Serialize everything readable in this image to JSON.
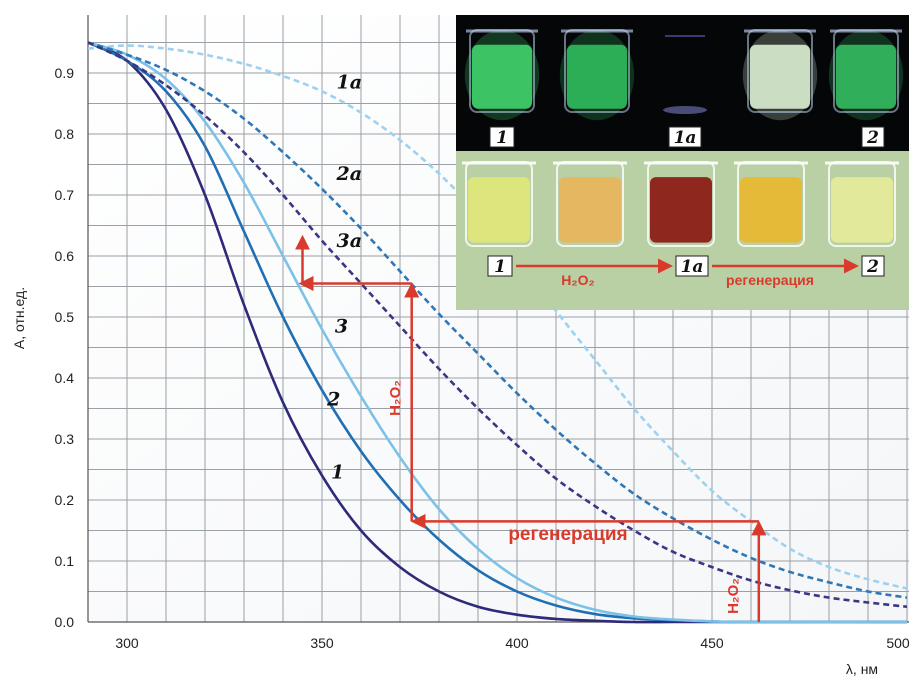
{
  "chart_data": {
    "type": "line",
    "xlabel": "λ, нм",
    "ylabel": "A, отн.ед.",
    "xlim": [
      290,
      500
    ],
    "ylim": [
      0,
      0.95
    ],
    "x_ticks": [
      "300",
      "350",
      "400",
      "450",
      "500"
    ],
    "y_ticks": [
      "0.0",
      "0.1",
      "0.2",
      "0.3",
      "0.4",
      "0.5",
      "0.6",
      "0.7",
      "0.8",
      "0.9"
    ],
    "grid": true,
    "series": [
      {
        "name": "1",
        "style": "solid",
        "color": "#2e2a7a",
        "x": [
          290,
          300,
          310,
          320,
          330,
          340,
          350,
          360,
          370,
          380,
          390,
          400,
          410,
          420,
          430,
          440,
          450,
          500
        ],
        "y": [
          0.95,
          0.92,
          0.84,
          0.7,
          0.52,
          0.36,
          0.24,
          0.15,
          0.09,
          0.05,
          0.025,
          0.012,
          0.005,
          0.002,
          0.0,
          0.0,
          0.0,
          0.0
        ]
      },
      {
        "name": "2",
        "style": "solid",
        "color": "#1f6fb2",
        "x": [
          290,
          300,
          310,
          320,
          330,
          340,
          350,
          360,
          370,
          380,
          390,
          400,
          410,
          420,
          430,
          440,
          450,
          460,
          500
        ],
        "y": [
          0.95,
          0.92,
          0.87,
          0.78,
          0.64,
          0.5,
          0.38,
          0.28,
          0.2,
          0.135,
          0.085,
          0.05,
          0.027,
          0.013,
          0.006,
          0.003,
          0.001,
          0.0,
          0.0
        ]
      },
      {
        "name": "3",
        "style": "solid",
        "color": "#7cc1e8",
        "x": [
          290,
          300,
          310,
          320,
          330,
          340,
          350,
          360,
          370,
          380,
          390,
          400,
          410,
          420,
          430,
          440,
          450,
          460,
          500
        ],
        "y": [
          0.95,
          0.93,
          0.89,
          0.82,
          0.72,
          0.6,
          0.48,
          0.37,
          0.27,
          0.185,
          0.12,
          0.072,
          0.04,
          0.02,
          0.009,
          0.004,
          0.001,
          0.0,
          0.0
        ]
      },
      {
        "name": "1a",
        "style": "dashed",
        "color": "#9ed0f0",
        "x": [
          290,
          300,
          310,
          320,
          330,
          340,
          350,
          360,
          370,
          380,
          390,
          400,
          410,
          420,
          430,
          440,
          450,
          460,
          470,
          480,
          490,
          500
        ],
        "y": [
          0.94,
          0.945,
          0.94,
          0.93,
          0.915,
          0.895,
          0.87,
          0.835,
          0.79,
          0.735,
          0.67,
          0.595,
          0.51,
          0.43,
          0.35,
          0.28,
          0.215,
          0.165,
          0.12,
          0.09,
          0.07,
          0.055
        ]
      },
      {
        "name": "2a",
        "style": "dashed",
        "color": "#2f77b6",
        "x": [
          290,
          300,
          310,
          320,
          330,
          340,
          350,
          360,
          370,
          380,
          390,
          400,
          410,
          420,
          430,
          440,
          450,
          460,
          470,
          480,
          490,
          500
        ],
        "y": [
          0.95,
          0.93,
          0.905,
          0.87,
          0.825,
          0.77,
          0.71,
          0.645,
          0.575,
          0.505,
          0.44,
          0.375,
          0.315,
          0.26,
          0.21,
          0.17,
          0.135,
          0.105,
          0.082,
          0.065,
          0.05,
          0.04
        ]
      },
      {
        "name": "3a",
        "style": "dashed",
        "color": "#3a3585",
        "x": [
          290,
          300,
          310,
          320,
          330,
          340,
          350,
          360,
          370,
          380,
          390,
          400,
          410,
          420,
          430,
          440,
          450,
          460,
          470,
          480,
          490,
          500
        ],
        "y": [
          0.95,
          0.92,
          0.88,
          0.83,
          0.77,
          0.7,
          0.625,
          0.555,
          0.485,
          0.415,
          0.35,
          0.29,
          0.235,
          0.19,
          0.15,
          0.115,
          0.09,
          0.068,
          0.052,
          0.04,
          0.032,
          0.025
        ]
      }
    ],
    "curve_labels": [
      {
        "text": "1a",
        "x": 357,
        "y": 0.875
      },
      {
        "text": "2a",
        "x": 357,
        "y": 0.725
      },
      {
        "text": "3a",
        "x": 357,
        "y": 0.615
      },
      {
        "text": "3",
        "x": 355,
        "y": 0.475
      },
      {
        "text": "2",
        "x": 353,
        "y": 0.355
      },
      {
        "text": "1",
        "x": 354,
        "y": 0.235
      }
    ],
    "annotations": {
      "h2o2_label": "H₂O₂",
      "regeneration_label": "регенерация",
      "arrow_color": "#d93a2b",
      "h2o2_arrow_low": {
        "x": 462,
        "y_from": 0.0,
        "y_to": 0.165
      },
      "regeneration_arrow": {
        "x_from": 462,
        "x_to": 373,
        "y": 0.165
      },
      "h2o2_arrow_high": {
        "x": 373,
        "y_from": 0.165,
        "y_to": 0.555
      },
      "shift_arrow": {
        "x_from": 373,
        "x_to": 345,
        "y": 0.555
      },
      "up_arrow": {
        "x": 345,
        "y_from": 0.555,
        "y_to": 0.63
      }
    }
  },
  "inset": {
    "fluorescence_labels": [
      "1",
      "1a",
      "2"
    ],
    "visible_labels": [
      "1",
      "1a",
      "2"
    ],
    "arrow_label_1": "H₂O₂",
    "arrow_label_2": "регенерация",
    "beaker_glow_colors": [
      "#3fcf6a",
      "#2fb85c",
      "#1a1a40",
      "#d8ecd0",
      "#34b860"
    ],
    "beaker_liquid_colors": [
      "#dfe87a",
      "#e8b55a",
      "#8a1a12",
      "#e8b830",
      "#e6ec9a"
    ]
  }
}
